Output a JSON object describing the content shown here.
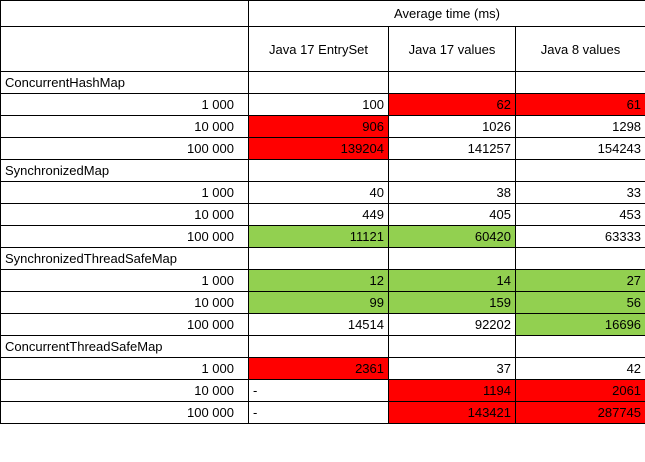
{
  "title": "Average time (ms)",
  "columns": [
    "Java 17 EntrySet",
    "Java 17 values",
    "Java 8 values"
  ],
  "colors": {
    "red": "#ff0000",
    "green": "#92d050"
  },
  "groups": [
    {
      "name": "ConcurrentHashMap",
      "rows": [
        {
          "size": "1 000",
          "values": [
            "100",
            "62",
            "61"
          ],
          "colors": [
            "",
            "red",
            "red"
          ]
        },
        {
          "size": "10 000",
          "values": [
            "906",
            "1026",
            "1298"
          ],
          "colors": [
            "red",
            "",
            ""
          ]
        },
        {
          "size": "100 000",
          "values": [
            "139204",
            "141257",
            "154243"
          ],
          "colors": [
            "red",
            "",
            ""
          ]
        }
      ]
    },
    {
      "name": "SynchronizedMap",
      "rows": [
        {
          "size": "1 000",
          "values": [
            "40",
            "38",
            "33"
          ],
          "colors": [
            "",
            "",
            ""
          ]
        },
        {
          "size": "10 000",
          "values": [
            "449",
            "405",
            "453"
          ],
          "colors": [
            "",
            "",
            ""
          ]
        },
        {
          "size": "100 000",
          "values": [
            "11121",
            "60420",
            "63333"
          ],
          "colors": [
            "green",
            "green",
            ""
          ]
        }
      ]
    },
    {
      "name": "SynchronizedThreadSafeMap",
      "rows": [
        {
          "size": "1 000",
          "values": [
            "12",
            "14",
            "27"
          ],
          "colors": [
            "green",
            "green",
            "green"
          ]
        },
        {
          "size": "10 000",
          "values": [
            "99",
            "159",
            "56"
          ],
          "colors": [
            "green",
            "green",
            "green"
          ]
        },
        {
          "size": "100 000",
          "values": [
            "14514",
            "92202",
            "16696"
          ],
          "colors": [
            "",
            "",
            "green"
          ]
        }
      ]
    },
    {
      "name": "ConcurrentThreadSafeMap",
      "rows": [
        {
          "size": "1 000",
          "values": [
            "2361",
            "37",
            "42"
          ],
          "colors": [
            "red",
            "",
            ""
          ]
        },
        {
          "size": "10 000",
          "values": [
            "-",
            "1194",
            "2061"
          ],
          "colors": [
            "",
            "red",
            "red"
          ]
        },
        {
          "size": "100 000",
          "values": [
            "-",
            "143421",
            "287745"
          ],
          "colors": [
            "",
            "red",
            "red"
          ]
        }
      ]
    }
  ]
}
